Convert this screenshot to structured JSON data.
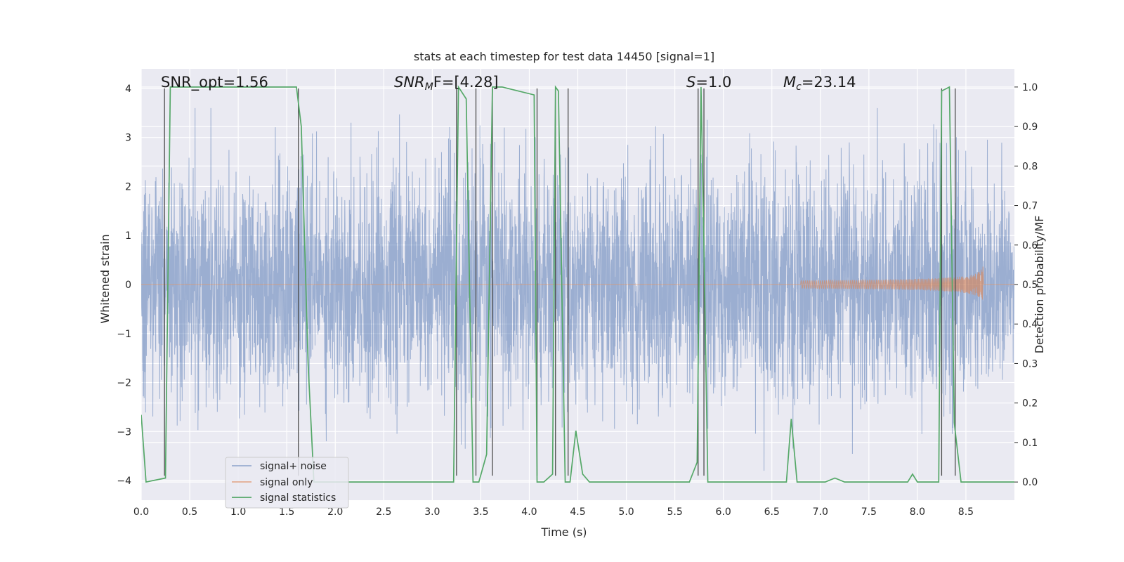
{
  "chart_data": {
    "type": "line",
    "title": "stats at each timestep for test data 14450 [signal=1]",
    "xlabel": "Time (s)",
    "ylabel": "Whitened strain",
    "y2label": "Detection probability/MF",
    "xlim": [
      0,
      9.0
    ],
    "ylim": [
      -4.4,
      4.4
    ],
    "y2lim": [
      -0.046,
      1.046
    ],
    "x_ticks": [
      "0.0",
      "0.5",
      "1.0",
      "1.5",
      "2.0",
      "2.5",
      "3.0",
      "3.5",
      "4.0",
      "4.5",
      "5.0",
      "5.5",
      "6.0",
      "6.5",
      "7.0",
      "7.5",
      "8.0",
      "8.5"
    ],
    "x_tick_values": [
      0,
      0.5,
      1,
      1.5,
      2,
      2.5,
      3,
      3.5,
      4,
      4.5,
      5,
      5.5,
      6,
      6.5,
      7,
      7.5,
      8,
      8.5
    ],
    "y_ticks": [
      "4",
      "3",
      "2",
      "1",
      "0",
      "−1",
      "−2",
      "−3",
      "−4"
    ],
    "y_tick_values": [
      4,
      3,
      2,
      1,
      0,
      -1,
      -2,
      -3,
      -4
    ],
    "y2_ticks": [
      "1.0",
      "0.9",
      "0.8",
      "0.7",
      "0.6",
      "0.5",
      "0.4",
      "0.3",
      "0.2",
      "0.1",
      "0.0"
    ],
    "y2_tick_values": [
      1.0,
      0.9,
      0.8,
      0.7,
      0.6,
      0.5,
      0.4,
      0.3,
      0.2,
      0.1,
      0.0
    ],
    "annotations": {
      "snr_opt": "SNR_opt=1.56",
      "snr_mf_prefix": "SNR",
      "snr_mf_sub": "M",
      "snr_mf_suffix": "F=[4.28]",
      "s_label": "S",
      "s_value": "=1.0",
      "mc_label": "M",
      "mc_sub": "c",
      "mc_value": "=23.14"
    },
    "legend": {
      "location": "lower-left",
      "entries": [
        "signal+ noise",
        "signal only",
        "signal statistics"
      ]
    },
    "series": [
      {
        "name": "signal+ noise",
        "color": "#4c72b0",
        "kind": "noise",
        "amplitude_range": [
          -3.8,
          3.6
        ]
      },
      {
        "name": "signal only",
        "color": "#dd8452",
        "kind": "chirp",
        "t_start": 6.8,
        "t_merge": 8.68,
        "peak_amplitude": 0.4
      },
      {
        "name": "signal statistics",
        "color": "#55a868",
        "axis": "right",
        "x": [
          0,
          0.05,
          0.25,
          0.3,
          0.4,
          1.6,
          1.65,
          1.72,
          1.78,
          3.22,
          3.27,
          3.35,
          3.42,
          3.48,
          3.56,
          3.62,
          3.68,
          3.72,
          4.05,
          4.08,
          4.15,
          4.24,
          4.27,
          4.3,
          4.37,
          4.42,
          4.48,
          4.55,
          4.62,
          4.7,
          5.65,
          5.73,
          5.77,
          5.8,
          5.84,
          5.92,
          6.65,
          6.7,
          6.76,
          7.05,
          7.15,
          7.25,
          7.4,
          7.9,
          7.95,
          8.0,
          8.08,
          8.22,
          8.25,
          8.33,
          8.38,
          8.45,
          9.0
        ],
        "y": [
          0.17,
          0.0,
          0.01,
          1.0,
          1.0,
          1.0,
          0.9,
          0.3,
          0.0,
          0.0,
          1.0,
          0.97,
          0.0,
          0.0,
          0.07,
          1.0,
          1.0,
          1.0,
          0.98,
          0.0,
          0.0,
          0.02,
          1.0,
          0.99,
          0.0,
          0.0,
          0.13,
          0.02,
          0.0,
          0.0,
          0.0,
          0.05,
          1.0,
          0.6,
          0.0,
          0.0,
          0.0,
          0.16,
          0.0,
          0.0,
          0.01,
          0.0,
          0.0,
          0.0,
          0.02,
          0.0,
          0.0,
          0.0,
          0.99,
          1.0,
          0.15,
          0.0,
          0.0
        ]
      }
    ],
    "vertical_lines": [
      0.24,
      1.62,
      3.25,
      3.45,
      3.62,
      4.08,
      4.27,
      4.4,
      5.74,
      5.8,
      8.25,
      8.39
    ]
  }
}
